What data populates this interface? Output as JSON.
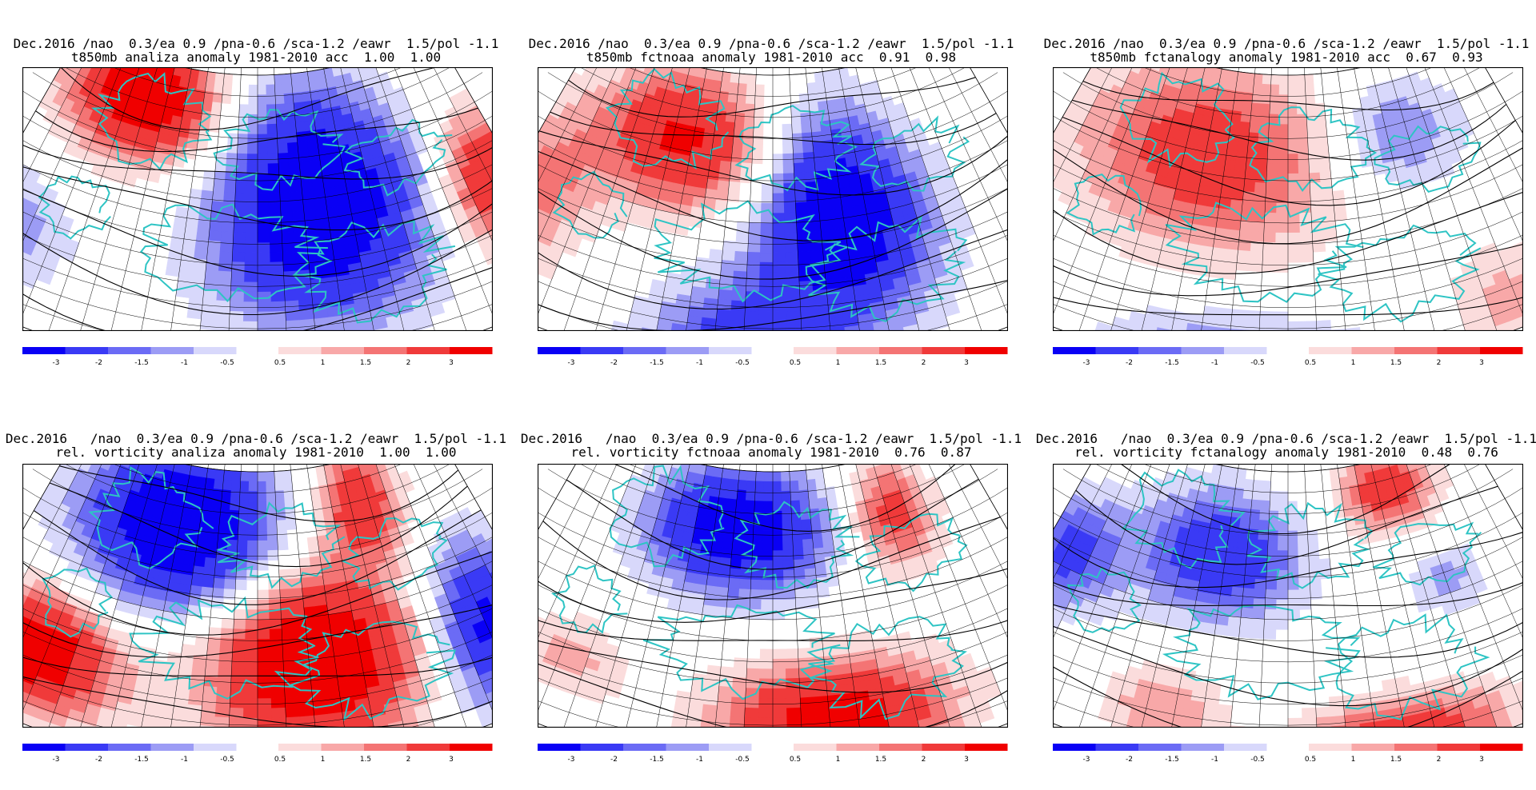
{
  "colors": {
    "neg": [
      "#0a00f5",
      "#3a3af5",
      "#6b6bf5",
      "#9c9cf5",
      "#d8d8fb"
    ],
    "pos": [
      "#fbdcdc",
      "#f8a8a8",
      "#f47474",
      "#f03a3a",
      "#f00000"
    ],
    "land_outline": "#2ec4c4",
    "contour": "#000000",
    "grid": "#000000"
  },
  "legend_labels_neg": [
    "-3",
    "-2",
    "-1.5",
    "-1",
    "-0.5"
  ],
  "legend_labels_pos": [
    "0.5",
    "1",
    "1.5",
    "2",
    "3"
  ],
  "panels": [
    {
      "title_line1": "Dec.2016 /nao  0.3/ea 0.9 /pna-0.6 /sca-1.2 /eawr  1.5/pol -1.1",
      "title_line2": "t850mb analiza anomaly 1981-2010 acc  1.00  1.00"
    },
    {
      "title_line1": "Dec.2016 /nao  0.3/ea 0.9 /pna-0.6 /sca-1.2 /eawr  1.5/pol -1.1",
      "title_line2": "t850mb fctnoaa anomaly 1981-2010 acc  0.91  0.98"
    },
    {
      "title_line1": "Dec.2016 /nao  0.3/ea 0.9 /pna-0.6 /sca-1.2 /eawr  1.5/pol -1.1",
      "title_line2": "t850mb fctanalogy anomaly 1981-2010 acc  0.67  0.93"
    },
    {
      "title_line1": "Dec.2016   /nao  0.3/ea 0.9 /pna-0.6 /sca-1.2 /eawr  1.5/pol -1.1",
      "title_line2": "rel. vorticity analiza anomaly 1981-2010  1.00  1.00"
    },
    {
      "title_line1": "Dec.2016   /nao  0.3/ea 0.9 /pna-0.6 /sca-1.2 /eawr  1.5/pol -1.1",
      "title_line2": "rel. vorticity fctnoaa anomaly 1981-2010  0.76  0.87"
    },
    {
      "title_line1": "Dec.2016   /nao  0.3/ea 0.9 /pna-0.6 /sca-1.2 /eawr  1.5/pol -1.1",
      "title_line2": "rel. vorticity fctanalogy anomaly 1981-2010  0.48  0.76"
    }
  ]
}
